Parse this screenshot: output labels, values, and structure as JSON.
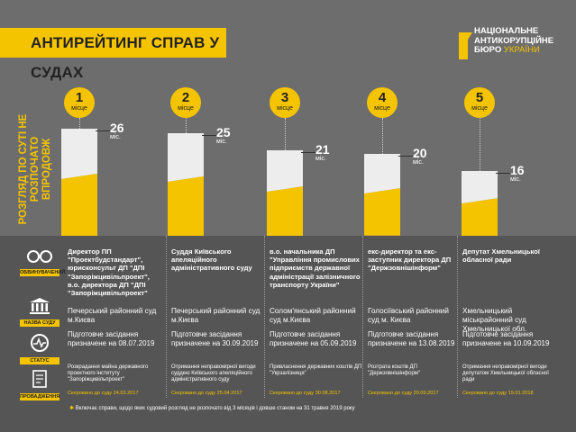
{
  "header": {
    "title": "АНТИРЕЙТИНГ СПРАВ У СУДАХ",
    "logo_line1": "НАЦІОНАЛЬНЕ",
    "logo_line2": "АНТИКОРУПЦІЙНЕ",
    "logo_line3a": "БЮРО ",
    "logo_line3b": "УКРАЇНИ"
  },
  "vertical_label": "РОЗГЛЯД ПО СУТІ НЕ РОЗПОЧАТО ВПРОДОВЖ",
  "place_sub": "місце",
  "months_unit": "міс.",
  "legend": {
    "person": "ОБВИНУВАЧЕНИЙ",
    "court": "НАЗВА СУДУ",
    "status": "СТАТУС",
    "case": "ПРОВАДЖЕННЯ"
  },
  "chart_data": {
    "type": "bar",
    "title": "Антирейтинг справ у судах",
    "ylabel": "Розгляд по суті не розпочато впродовж, міс.",
    "categories": [
      "1 місце",
      "2 місце",
      "3 місце",
      "4 місце",
      "5 місце"
    ],
    "values": [
      26,
      25,
      21,
      20,
      16
    ],
    "ylim": [
      0,
      26
    ]
  },
  "cases": [
    {
      "num": "1",
      "months": "26",
      "position": "Директор ПП \"Проектбудстандарт\", юрисконсульт ДП \"ДПІ \"Запоріжцивільпроект\", в.о. директора ДП \"ДПІ \"Запоріжцивільпроект\"",
      "court": "Печерський районний суд м.Києва",
      "status": "Підготовче засідання призначене на 08.07.2019",
      "case": "Розкрадання майна державного проектного інституту \"Запоріжцивільпроект\"",
      "sent": "Скеровано до суду 24.03.2017"
    },
    {
      "num": "2",
      "months": "25",
      "position": "Суддя Київського апеляційного адміністративного суду",
      "court": "Печерський районний суд м.Києва",
      "status": "Підготовче засідання призначене на 30.09.2019",
      "case": "Отримання неправомірної вигоди суддею Київського апеляційного адміністративного суду",
      "sent": "Скеровано до суду 25.04.2017"
    },
    {
      "num": "3",
      "months": "21",
      "position": "в.о. начальника ДП \"Управління промислових підприємств державної адміністрації залізничного транспорту України\"",
      "court": "Солом'янський районний суд м.Києва",
      "status": "Підготовче засідання призначене на 05.09.2019",
      "case": "Привласнення державних коштів ДП \"Укрзалізниця\"",
      "sent": "Скеровано до суду 30.08.2017"
    },
    {
      "num": "4",
      "months": "20",
      "position": "екс-директор та екс-заступник директора ДП \"Держзовнішінформ\"",
      "court": "Голосіївський районний суд м. Києва",
      "status": "Підготовче засідання призначене на 13.08.2019",
      "case": "Розтрата коштів ДП \"Держзовнішінформ\"",
      "sent": "Скеровано до суду 20.09.2017"
    },
    {
      "num": "5",
      "months": "16",
      "position": "Депутат Хмельницької обласної ради",
      "court": "Хмельницький міськрайонний суд Хмельницької обл.",
      "status": "Підготовче засідання призначене на 10.09.2019",
      "case": "Отримання неправомірної вигоди депутатом Хмельницької обласної ради",
      "sent": "Скеровано до суду 19.01.2018"
    }
  ],
  "footnote": "Включає справи, щодо яких судовий розгляд не розпочато від 3 місяців і довше станом на 31 травня 2019 року",
  "colors": {
    "accent": "#f5c400",
    "dark": "#555555",
    "mid": "#6d6d6d"
  }
}
